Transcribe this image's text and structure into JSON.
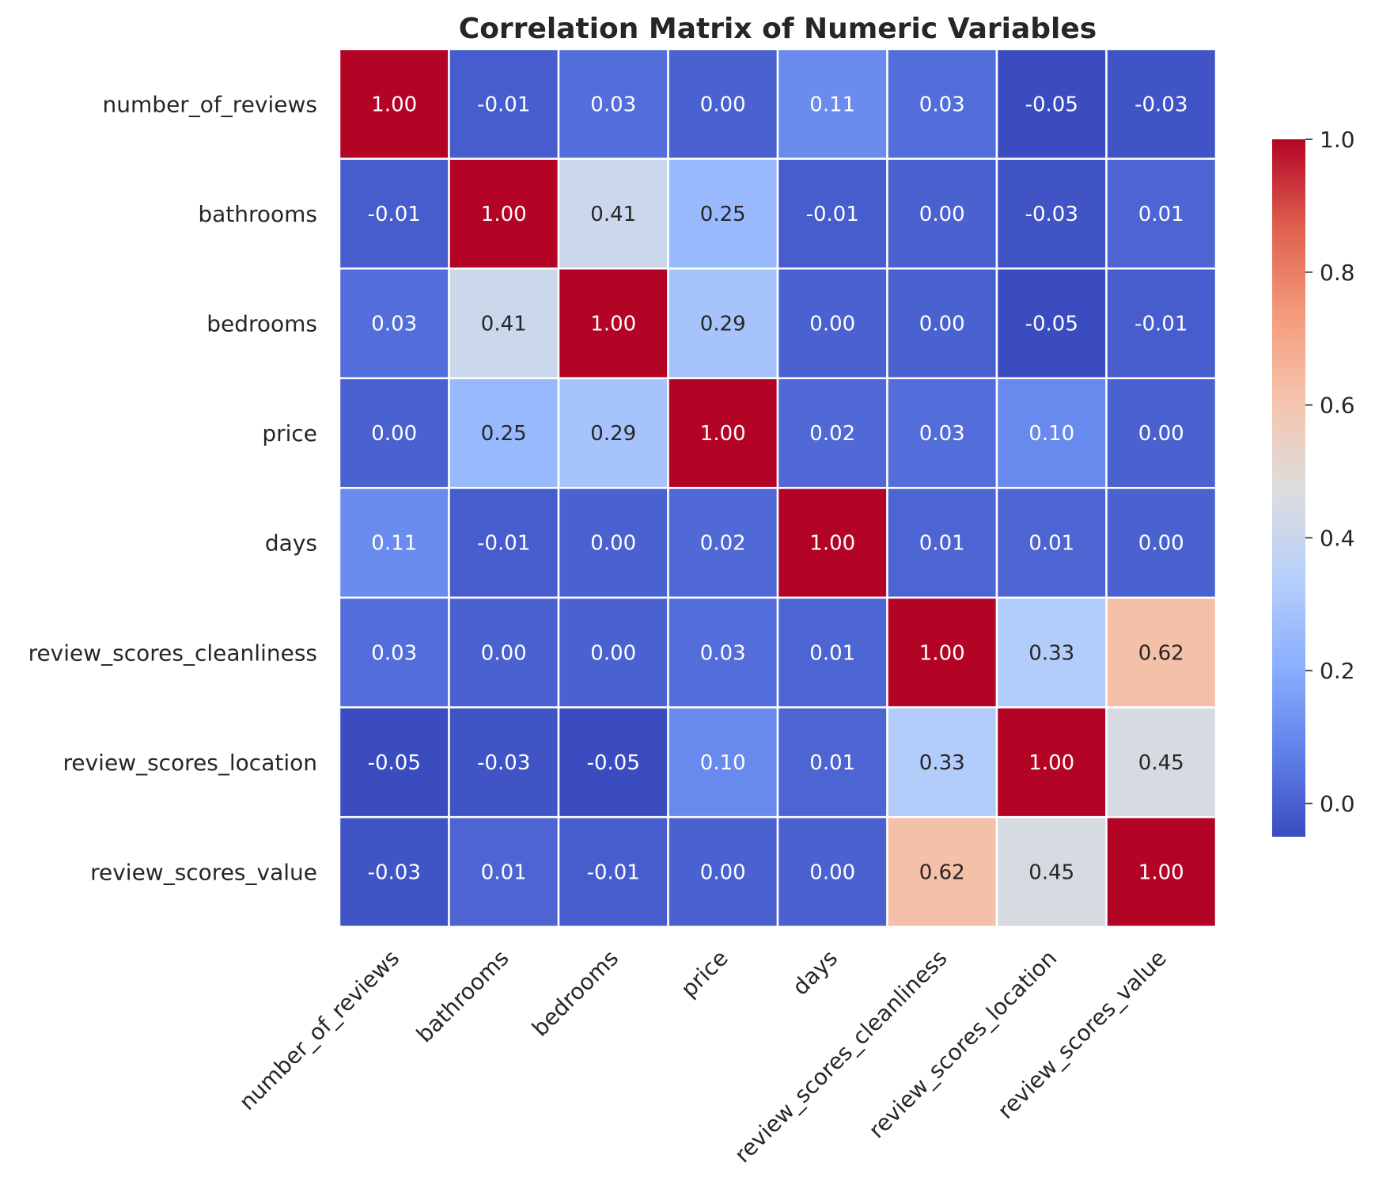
{
  "chart_data": {
    "type": "heatmap",
    "title": "Correlation Matrix of Numeric Variables",
    "xlabel": "",
    "ylabel": "",
    "variables": [
      "number_of_reviews",
      "bathrooms",
      "bedrooms",
      "price",
      "days",
      "review_scores_cleanliness",
      "review_scores_location",
      "review_scores_value"
    ],
    "matrix": [
      [
        1.0,
        -0.01,
        0.03,
        -0.0,
        0.11,
        0.03,
        -0.05,
        -0.03
      ],
      [
        -0.01,
        1.0,
        0.41,
        0.25,
        -0.01,
        0.0,
        -0.03,
        0.01
      ],
      [
        0.03,
        0.41,
        1.0,
        0.29,
        0.0,
        0.0,
        -0.05,
        -0.01
      ],
      [
        -0.0,
        0.25,
        0.29,
        1.0,
        0.02,
        0.03,
        0.1,
        0.0
      ],
      [
        0.11,
        -0.01,
        0.0,
        0.02,
        1.0,
        0.01,
        0.01,
        0.0
      ],
      [
        0.03,
        0.0,
        0.0,
        0.03,
        0.01,
        1.0,
        0.33,
        0.62
      ],
      [
        -0.05,
        -0.03,
        -0.05,
        0.1,
        0.01,
        0.33,
        1.0,
        0.45
      ],
      [
        -0.03,
        0.01,
        -0.01,
        0.0,
        0.0,
        0.62,
        0.45,
        1.0
      ]
    ],
    "value_format": "2 decimals",
    "colormap": "coolwarm",
    "vmin": -0.05,
    "vmax": 1.0,
    "colorbar": {
      "ticks": [
        0.0,
        0.2,
        0.4,
        0.6,
        0.8,
        1.0
      ],
      "tick_labels": [
        "0.0",
        "0.2",
        "0.4",
        "0.6",
        "0.8",
        "1.0"
      ],
      "placement": "right"
    },
    "grid_lines": "white",
    "x_tick_rotation": "45 degrees"
  }
}
